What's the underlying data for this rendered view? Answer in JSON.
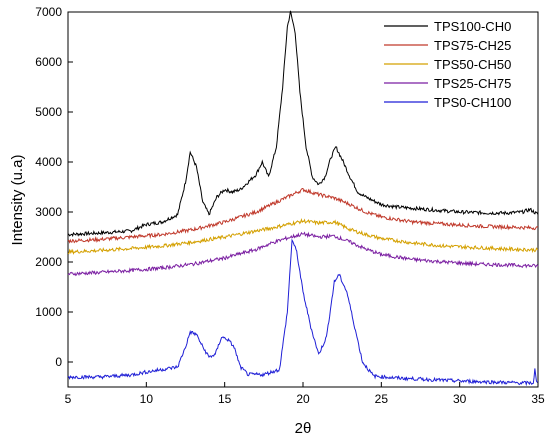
{
  "chart_data": {
    "type": "line",
    "title": "",
    "xlabel": "2θ",
    "ylabel": "Intensity (u.a)",
    "xlim": [
      5,
      35
    ],
    "ylim": [
      -500,
      7000
    ],
    "xticks": [
      5,
      10,
      15,
      20,
      25,
      30,
      35
    ],
    "yticks": [
      0,
      1000,
      2000,
      3000,
      4000,
      5000,
      6000,
      7000
    ],
    "xtick_labels": [
      "5",
      "10",
      "15",
      "20",
      "25",
      "30",
      "35"
    ],
    "ytick_labels": [
      "0",
      "1000",
      "2000",
      "3000",
      "4000",
      "5000",
      "6000",
      "7000"
    ],
    "grid": false,
    "legend_position": "top-right",
    "series": [
      {
        "name": "TPS100-CH0",
        "color": "#000000",
        "points": [
          [
            5,
            2550
          ],
          [
            7,
            2580
          ],
          [
            9,
            2620
          ],
          [
            10,
            2750
          ],
          [
            11,
            2800
          ],
          [
            12,
            2950
          ],
          [
            12.5,
            3600
          ],
          [
            12.8,
            4200
          ],
          [
            13.2,
            3900
          ],
          [
            13.6,
            3200
          ],
          [
            14,
            2950
          ],
          [
            14.5,
            3300
          ],
          [
            15,
            3450
          ],
          [
            15.5,
            3400
          ],
          [
            16,
            3450
          ],
          [
            16.5,
            3600
          ],
          [
            17,
            3750
          ],
          [
            17.4,
            4000
          ],
          [
            17.8,
            3700
          ],
          [
            18.3,
            4300
          ],
          [
            18.7,
            5500
          ],
          [
            19,
            6700
          ],
          [
            19.2,
            7000
          ],
          [
            19.5,
            6600
          ],
          [
            19.8,
            5400
          ],
          [
            20.2,
            4300
          ],
          [
            20.6,
            3700
          ],
          [
            21,
            3550
          ],
          [
            21.4,
            3700
          ],
          [
            21.8,
            4100
          ],
          [
            22.1,
            4300
          ],
          [
            22.5,
            4050
          ],
          [
            23,
            3700
          ],
          [
            23.5,
            3400
          ],
          [
            24,
            3300
          ],
          [
            25,
            3150
          ],
          [
            26,
            3100
          ],
          [
            28,
            3050
          ],
          [
            30,
            3000
          ],
          [
            32,
            2980
          ],
          [
            33,
            2980
          ],
          [
            34,
            3000
          ],
          [
            34.5,
            3050
          ],
          [
            35,
            2950
          ]
        ]
      },
      {
        "name": "TPS75-CH25",
        "color": "#c0392b",
        "points": [
          [
            5,
            2420
          ],
          [
            7,
            2450
          ],
          [
            9,
            2500
          ],
          [
            11,
            2550
          ],
          [
            13,
            2650
          ],
          [
            15,
            2800
          ],
          [
            17,
            3000
          ],
          [
            18,
            3150
          ],
          [
            19,
            3300
          ],
          [
            20,
            3450
          ],
          [
            20.5,
            3400
          ],
          [
            21,
            3350
          ],
          [
            22,
            3280
          ],
          [
            23,
            3150
          ],
          [
            24,
            3000
          ],
          [
            25,
            2900
          ],
          [
            27,
            2800
          ],
          [
            29,
            2760
          ],
          [
            31,
            2720
          ],
          [
            33,
            2700
          ],
          [
            35,
            2680
          ]
        ]
      },
      {
        "name": "TPS50-CH50",
        "color": "#d4a000",
        "points": [
          [
            5,
            2200
          ],
          [
            7,
            2230
          ],
          [
            9,
            2270
          ],
          [
            11,
            2320
          ],
          [
            13,
            2400
          ],
          [
            15,
            2500
          ],
          [
            17,
            2620
          ],
          [
            18,
            2680
          ],
          [
            19,
            2750
          ],
          [
            20,
            2820
          ],
          [
            21,
            2780
          ],
          [
            22,
            2800
          ],
          [
            23,
            2650
          ],
          [
            24,
            2550
          ],
          [
            25,
            2470
          ],
          [
            27,
            2380
          ],
          [
            29,
            2320
          ],
          [
            31,
            2290
          ],
          [
            33,
            2260
          ],
          [
            35,
            2240
          ]
        ]
      },
      {
        "name": "TPS25-CH75",
        "color": "#7b1fa2",
        "points": [
          [
            5,
            1760
          ],
          [
            7,
            1790
          ],
          [
            9,
            1830
          ],
          [
            11,
            1880
          ],
          [
            13,
            1960
          ],
          [
            15,
            2080
          ],
          [
            17,
            2250
          ],
          [
            18,
            2380
          ],
          [
            19,
            2480
          ],
          [
            20,
            2560
          ],
          [
            21,
            2500
          ],
          [
            22,
            2520
          ],
          [
            23,
            2400
          ],
          [
            24,
            2260
          ],
          [
            25,
            2150
          ],
          [
            27,
            2050
          ],
          [
            29,
            2000
          ],
          [
            31,
            1960
          ],
          [
            33,
            1940
          ],
          [
            35,
            1920
          ]
        ]
      },
      {
        "name": "TPS0-CH100",
        "color": "#1f1fd6",
        "points": [
          [
            5,
            -300
          ],
          [
            7,
            -300
          ],
          [
            9,
            -260
          ],
          [
            10,
            -200
          ],
          [
            11,
            -150
          ],
          [
            12,
            -100
          ],
          [
            12.5,
            300
          ],
          [
            12.8,
            600
          ],
          [
            13.2,
            550
          ],
          [
            13.6,
            300
          ],
          [
            14,
            100
          ],
          [
            14.4,
            150
          ],
          [
            14.8,
            500
          ],
          [
            15.2,
            450
          ],
          [
            15.6,
            300
          ],
          [
            16,
            -100
          ],
          [
            16.5,
            -250
          ],
          [
            17.5,
            -250
          ],
          [
            18.5,
            -150
          ],
          [
            19,
            1000
          ],
          [
            19.3,
            2450
          ],
          [
            19.6,
            2200
          ],
          [
            20,
            1400
          ],
          [
            20.5,
            700
          ],
          [
            21,
            150
          ],
          [
            21.5,
            500
          ],
          [
            22,
            1600
          ],
          [
            22.3,
            1750
          ],
          [
            22.8,
            1400
          ],
          [
            23.3,
            700
          ],
          [
            23.8,
            0
          ],
          [
            24.5,
            -280
          ],
          [
            26,
            -320
          ],
          [
            28,
            -350
          ],
          [
            30,
            -380
          ],
          [
            32,
            -400
          ],
          [
            34,
            -420
          ],
          [
            34.7,
            -420
          ],
          [
            34.8,
            -150
          ],
          [
            34.9,
            -400
          ],
          [
            35,
            -420
          ]
        ]
      }
    ]
  }
}
